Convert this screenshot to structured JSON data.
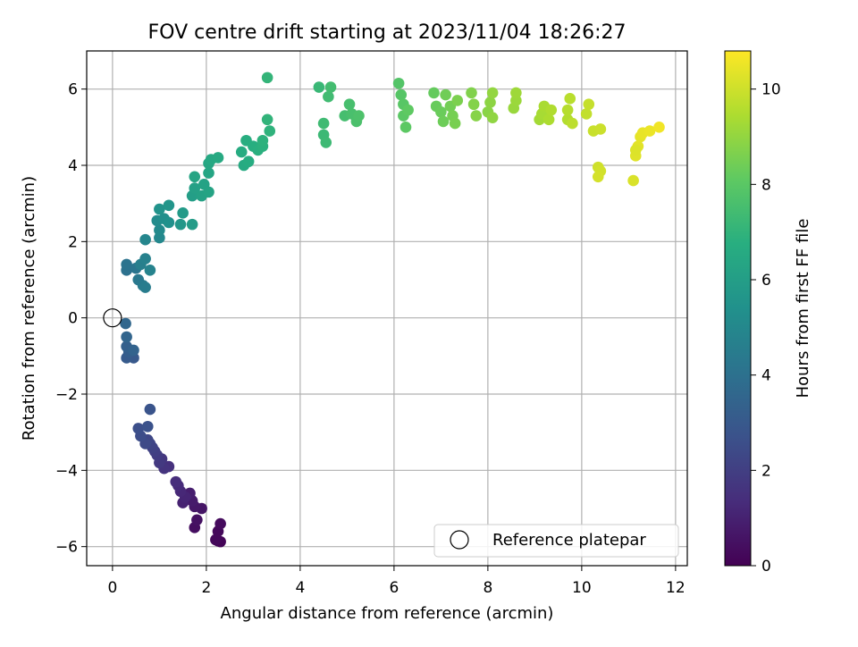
{
  "chart_data": {
    "type": "scatter",
    "title": "FOV centre drift starting at 2023/11/04 18:26:27",
    "xlabel": "Angular distance from reference (arcmin)",
    "ylabel": "Rotation from reference (arcmin)",
    "xlim": [
      -0.55,
      12.25
    ],
    "ylim": [
      -6.5,
      7.0
    ],
    "xticks": [
      0,
      2,
      4,
      6,
      8,
      10,
      12
    ],
    "yticks": [
      -6,
      -4,
      -2,
      0,
      2,
      4,
      6
    ],
    "xtick_labels": [
      "0",
      "2",
      "4",
      "6",
      "8",
      "10",
      "12"
    ],
    "ytick_labels": [
      "−6",
      "−4",
      "−2",
      "0",
      "2",
      "4",
      "6"
    ],
    "grid": true,
    "colormap": "viridis",
    "colorbar": {
      "label": "Hours from first FF file",
      "range": [
        0,
        10.8
      ],
      "ticks": [
        0,
        2,
        4,
        6,
        8,
        10
      ],
      "tick_labels": [
        "0",
        "2",
        "4",
        "6",
        "8",
        "10"
      ]
    },
    "legend": {
      "position": "lower-right",
      "entries": [
        "Reference platepar"
      ]
    },
    "reference_point": {
      "x": 0,
      "y": 0,
      "label": "Reference platepar"
    },
    "series": [
      {
        "color_by": "hours",
        "points": [
          {
            "x": 2.3,
            "y": -5.87,
            "c": 0.1
          },
          {
            "x": 2.25,
            "y": -5.85,
            "c": 0.1
          },
          {
            "x": 2.2,
            "y": -5.82,
            "c": 0.2
          },
          {
            "x": 2.25,
            "y": -5.6,
            "c": 0.2
          },
          {
            "x": 2.3,
            "y": -5.4,
            "c": 0.3
          },
          {
            "x": 1.75,
            "y": -5.5,
            "c": 0.4
          },
          {
            "x": 1.8,
            "y": -5.3,
            "c": 0.5
          },
          {
            "x": 1.9,
            "y": -5.0,
            "c": 0.6
          },
          {
            "x": 1.75,
            "y": -4.95,
            "c": 0.7
          },
          {
            "x": 1.7,
            "y": -4.8,
            "c": 0.8
          },
          {
            "x": 1.65,
            "y": -4.6,
            "c": 0.9
          },
          {
            "x": 1.5,
            "y": -4.85,
            "c": 1.0
          },
          {
            "x": 1.55,
            "y": -4.7,
            "c": 1.1
          },
          {
            "x": 1.45,
            "y": -4.55,
            "c": 1.2
          },
          {
            "x": 1.4,
            "y": -4.4,
            "c": 1.3
          },
          {
            "x": 1.35,
            "y": -4.3,
            "c": 1.4
          },
          {
            "x": 1.2,
            "y": -3.9,
            "c": 1.5
          },
          {
            "x": 1.1,
            "y": -3.95,
            "c": 1.6
          },
          {
            "x": 1.05,
            "y": -3.7,
            "c": 1.7
          },
          {
            "x": 1.0,
            "y": -3.8,
            "c": 1.8
          },
          {
            "x": 0.95,
            "y": -3.6,
            "c": 1.9
          },
          {
            "x": 0.9,
            "y": -3.5,
            "c": 2.0
          },
          {
            "x": 0.85,
            "y": -3.4,
            "c": 2.1
          },
          {
            "x": 0.8,
            "y": -3.3,
            "c": 2.2
          },
          {
            "x": 0.75,
            "y": -3.2,
            "c": 2.3
          },
          {
            "x": 0.7,
            "y": -3.3,
            "c": 2.4
          },
          {
            "x": 0.6,
            "y": -3.1,
            "c": 2.5
          },
          {
            "x": 0.55,
            "y": -2.9,
            "c": 2.6
          },
          {
            "x": 0.75,
            "y": -2.85,
            "c": 2.7
          },
          {
            "x": 0.8,
            "y": -2.4,
            "c": 2.8
          },
          {
            "x": 0.45,
            "y": -1.05,
            "c": 3.0
          },
          {
            "x": 0.3,
            "y": -1.05,
            "c": 3.1
          },
          {
            "x": 0.35,
            "y": -0.9,
            "c": 3.2
          },
          {
            "x": 0.3,
            "y": -0.75,
            "c": 3.3
          },
          {
            "x": 0.45,
            "y": -0.85,
            "c": 3.4
          },
          {
            "x": 0.3,
            "y": -0.5,
            "c": 3.5
          },
          {
            "x": 0.28,
            "y": -0.15,
            "c": 3.6
          },
          {
            "x": 0.3,
            "y": 1.25,
            "c": 4.0
          },
          {
            "x": 0.3,
            "y": 1.4,
            "c": 4.1
          },
          {
            "x": 0.5,
            "y": 1.3,
            "c": 4.2
          },
          {
            "x": 0.55,
            "y": 1.0,
            "c": 4.3
          },
          {
            "x": 0.65,
            "y": 0.85,
            "c": 4.4
          },
          {
            "x": 0.7,
            "y": 0.8,
            "c": 4.5
          },
          {
            "x": 0.6,
            "y": 1.4,
            "c": 4.6
          },
          {
            "x": 0.7,
            "y": 1.55,
            "c": 4.7
          },
          {
            "x": 0.8,
            "y": 1.25,
            "c": 4.8
          },
          {
            "x": 0.7,
            "y": 2.05,
            "c": 4.9
          },
          {
            "x": 1.0,
            "y": 2.1,
            "c": 5.0
          },
          {
            "x": 1.0,
            "y": 2.3,
            "c": 5.1
          },
          {
            "x": 0.95,
            "y": 2.55,
            "c": 5.2
          },
          {
            "x": 1.1,
            "y": 2.6,
            "c": 5.3
          },
          {
            "x": 1.2,
            "y": 2.5,
            "c": 5.4
          },
          {
            "x": 1.0,
            "y": 2.85,
            "c": 5.5
          },
          {
            "x": 1.2,
            "y": 2.95,
            "c": 5.6
          },
          {
            "x": 1.45,
            "y": 2.45,
            "c": 5.7
          },
          {
            "x": 1.5,
            "y": 2.75,
            "c": 5.8
          },
          {
            "x": 1.7,
            "y": 2.45,
            "c": 5.9
          },
          {
            "x": 1.7,
            "y": 3.2,
            "c": 6.0
          },
          {
            "x": 1.75,
            "y": 3.4,
            "c": 6.1
          },
          {
            "x": 1.9,
            "y": 3.2,
            "c": 6.15
          },
          {
            "x": 1.95,
            "y": 3.5,
            "c": 6.2
          },
          {
            "x": 2.05,
            "y": 3.3,
            "c": 6.25
          },
          {
            "x": 1.75,
            "y": 3.7,
            "c": 6.3
          },
          {
            "x": 2.05,
            "y": 3.8,
            "c": 6.35
          },
          {
            "x": 2.05,
            "y": 4.05,
            "c": 6.4
          },
          {
            "x": 2.1,
            "y": 4.15,
            "c": 6.45
          },
          {
            "x": 2.25,
            "y": 4.2,
            "c": 6.5
          },
          {
            "x": 2.8,
            "y": 4.0,
            "c": 6.55
          },
          {
            "x": 2.75,
            "y": 4.35,
            "c": 6.6
          },
          {
            "x": 2.9,
            "y": 4.1,
            "c": 6.65
          },
          {
            "x": 2.85,
            "y": 4.65,
            "c": 6.7
          },
          {
            "x": 3.0,
            "y": 4.5,
            "c": 6.75
          },
          {
            "x": 3.1,
            "y": 4.4,
            "c": 6.8
          },
          {
            "x": 3.2,
            "y": 4.5,
            "c": 6.85
          },
          {
            "x": 3.2,
            "y": 4.65,
            "c": 6.9
          },
          {
            "x": 3.35,
            "y": 4.9,
            "c": 6.95
          },
          {
            "x": 3.3,
            "y": 5.2,
            "c": 7.0
          },
          {
            "x": 3.3,
            "y": 6.3,
            "c": 7.05
          },
          {
            "x": 4.4,
            "y": 6.05,
            "c": 7.2
          },
          {
            "x": 4.5,
            "y": 4.8,
            "c": 7.25
          },
          {
            "x": 4.55,
            "y": 4.6,
            "c": 7.3
          },
          {
            "x": 4.5,
            "y": 5.1,
            "c": 7.35
          },
          {
            "x": 4.6,
            "y": 5.8,
            "c": 7.4
          },
          {
            "x": 4.65,
            "y": 6.05,
            "c": 7.45
          },
          {
            "x": 4.95,
            "y": 5.3,
            "c": 7.5
          },
          {
            "x": 5.05,
            "y": 5.6,
            "c": 7.55
          },
          {
            "x": 5.1,
            "y": 5.35,
            "c": 7.6
          },
          {
            "x": 5.2,
            "y": 5.15,
            "c": 7.65
          },
          {
            "x": 5.25,
            "y": 5.3,
            "c": 7.7
          },
          {
            "x": 6.1,
            "y": 6.15,
            "c": 7.85
          },
          {
            "x": 6.15,
            "y": 5.85,
            "c": 7.9
          },
          {
            "x": 6.2,
            "y": 5.6,
            "c": 7.95
          },
          {
            "x": 6.2,
            "y": 5.3,
            "c": 8.0
          },
          {
            "x": 6.25,
            "y": 5.0,
            "c": 8.05
          },
          {
            "x": 6.3,
            "y": 5.45,
            "c": 8.1
          },
          {
            "x": 6.85,
            "y": 5.9,
            "c": 8.2
          },
          {
            "x": 6.9,
            "y": 5.55,
            "c": 8.25
          },
          {
            "x": 7.0,
            "y": 5.4,
            "c": 8.3
          },
          {
            "x": 7.05,
            "y": 5.15,
            "c": 8.35
          },
          {
            "x": 7.1,
            "y": 5.85,
            "c": 8.4
          },
          {
            "x": 7.2,
            "y": 5.55,
            "c": 8.45
          },
          {
            "x": 7.25,
            "y": 5.3,
            "c": 8.5
          },
          {
            "x": 7.3,
            "y": 5.1,
            "c": 8.55
          },
          {
            "x": 7.35,
            "y": 5.7,
            "c": 8.6
          },
          {
            "x": 7.65,
            "y": 5.9,
            "c": 8.7
          },
          {
            "x": 7.7,
            "y": 5.6,
            "c": 8.75
          },
          {
            "x": 7.75,
            "y": 5.3,
            "c": 8.8
          },
          {
            "x": 8.0,
            "y": 5.4,
            "c": 8.85
          },
          {
            "x": 8.05,
            "y": 5.65,
            "c": 8.9
          },
          {
            "x": 8.1,
            "y": 5.25,
            "c": 8.95
          },
          {
            "x": 8.1,
            "y": 5.9,
            "c": 9.0
          },
          {
            "x": 8.55,
            "y": 5.5,
            "c": 9.1
          },
          {
            "x": 8.6,
            "y": 5.7,
            "c": 9.15
          },
          {
            "x": 8.6,
            "y": 5.9,
            "c": 9.2
          },
          {
            "x": 9.1,
            "y": 5.2,
            "c": 9.3
          },
          {
            "x": 9.15,
            "y": 5.35,
            "c": 9.35
          },
          {
            "x": 9.2,
            "y": 5.55,
            "c": 9.4
          },
          {
            "x": 9.3,
            "y": 5.2,
            "c": 9.45
          },
          {
            "x": 9.35,
            "y": 5.45,
            "c": 9.5
          },
          {
            "x": 9.7,
            "y": 5.2,
            "c": 9.55
          },
          {
            "x": 9.7,
            "y": 5.45,
            "c": 9.6
          },
          {
            "x": 9.75,
            "y": 5.75,
            "c": 9.65
          },
          {
            "x": 9.8,
            "y": 5.1,
            "c": 9.7
          },
          {
            "x": 10.1,
            "y": 5.35,
            "c": 9.8
          },
          {
            "x": 10.15,
            "y": 5.6,
            "c": 9.85
          },
          {
            "x": 10.25,
            "y": 4.9,
            "c": 9.9
          },
          {
            "x": 10.4,
            "y": 4.95,
            "c": 9.95
          },
          {
            "x": 10.35,
            "y": 3.95,
            "c": 10.0
          },
          {
            "x": 10.4,
            "y": 3.85,
            "c": 10.05
          },
          {
            "x": 10.35,
            "y": 3.7,
            "c": 10.1
          },
          {
            "x": 11.1,
            "y": 3.6,
            "c": 10.2
          },
          {
            "x": 11.15,
            "y": 4.25,
            "c": 10.3
          },
          {
            "x": 11.2,
            "y": 4.5,
            "c": 10.35
          },
          {
            "x": 11.25,
            "y": 4.75,
            "c": 10.4
          },
          {
            "x": 11.3,
            "y": 4.85,
            "c": 10.45
          },
          {
            "x": 11.45,
            "y": 4.9,
            "c": 10.5
          },
          {
            "x": 11.65,
            "y": 5.0,
            "c": 10.6
          },
          {
            "x": 11.15,
            "y": 4.4,
            "c": 10.25
          }
        ]
      }
    ]
  }
}
